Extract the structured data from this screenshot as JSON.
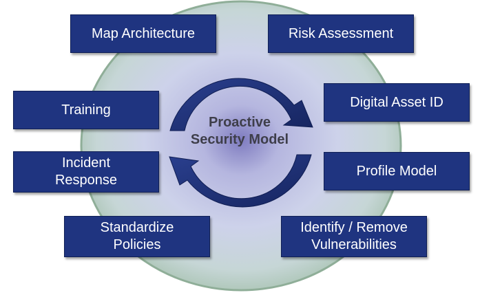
{
  "diagram": {
    "center_title": "Proactive\nSecurity Model",
    "steps": [
      {
        "key": "map-architecture",
        "label": "Map Architecture"
      },
      {
        "key": "risk-assessment",
        "label": "Risk Assessment"
      },
      {
        "key": "digital-asset-id",
        "label": "Digital Asset ID"
      },
      {
        "key": "profile-model",
        "label": "Profile Model"
      },
      {
        "key": "identify-remove-vulnerabilities",
        "label": "Identify / Remove\nVulnerabilities"
      },
      {
        "key": "standardize-policies",
        "label": "Standardize\nPolicies"
      },
      {
        "key": "incident-response",
        "label": "Incident\nResponse"
      },
      {
        "key": "training",
        "label": "Training"
      }
    ]
  },
  "colors": {
    "box_fill": "#1f3480",
    "arrow_fill": "#1e3278",
    "ellipse_outer": "#9ebca8",
    "ellipse_inner": "#c8cbe8",
    "center_glow": "#8a86c2"
  }
}
